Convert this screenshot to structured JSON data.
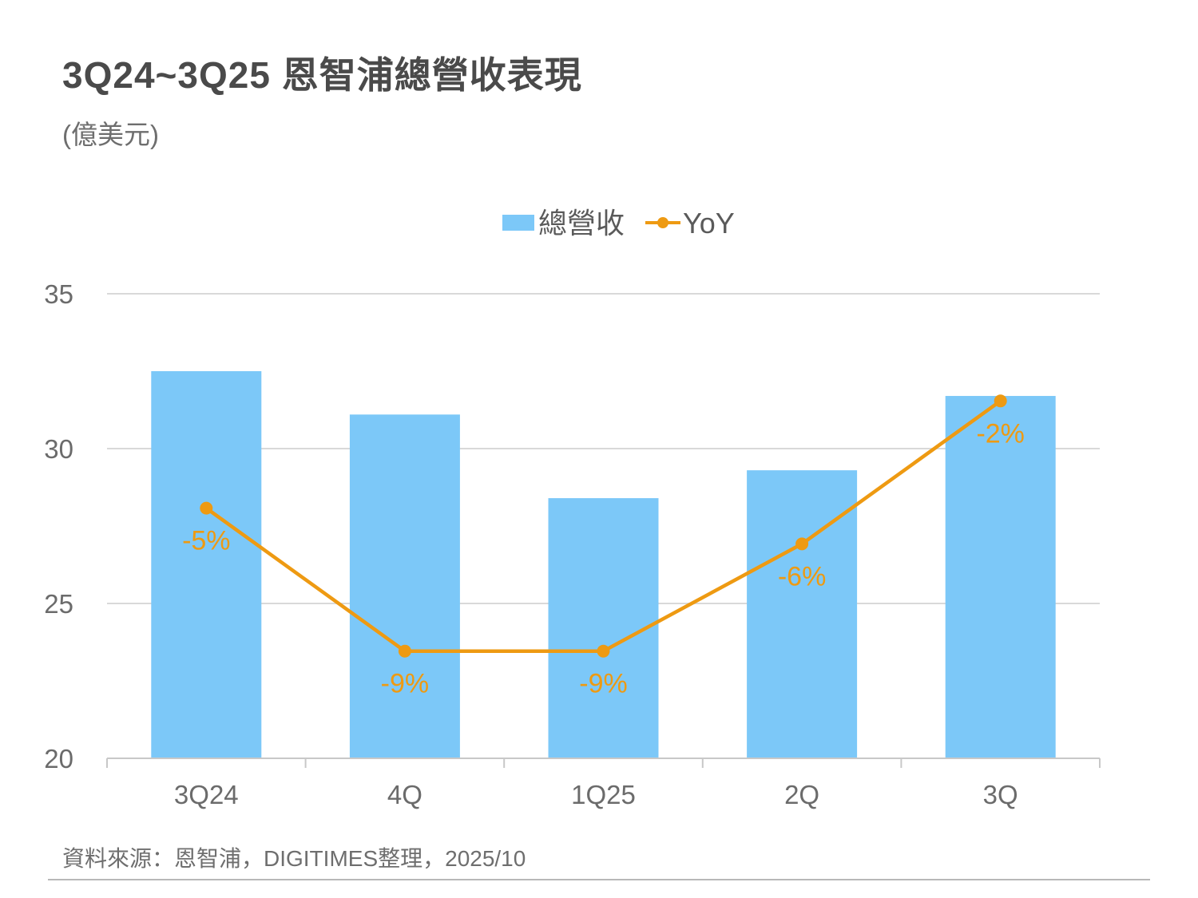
{
  "title": "3Q24~3Q25 恩智浦總營收表現",
  "unit": "(億美元)",
  "source": "資料來源：恩智浦，DIGITIMES整理，2025/10",
  "colors": {
    "bar": "#7CC8F8",
    "line": "#EE9A12",
    "grid": "#d9d9d9",
    "axis": "#c8c8c8"
  },
  "chart_data": {
    "type": "bar",
    "categories": [
      "3Q24",
      "4Q",
      "1Q25",
      "2Q",
      "3Q"
    ],
    "series": [
      {
        "name": "總營收",
        "type": "bar",
        "values": [
          32.5,
          31.1,
          28.4,
          29.3,
          31.7
        ]
      },
      {
        "name": "YoY",
        "type": "line",
        "axis": "secondary",
        "values": [
          -5,
          -9,
          -9,
          -6,
          -2
        ],
        "labels": [
          "-5%",
          "-9%",
          "-9%",
          "-6%",
          "-2%"
        ]
      }
    ],
    "ylim": [
      20,
      35
    ],
    "yticks": [
      20,
      25,
      30,
      35
    ],
    "y2lim": [
      -12,
      1
    ],
    "grid": true,
    "legend": "top-center"
  }
}
